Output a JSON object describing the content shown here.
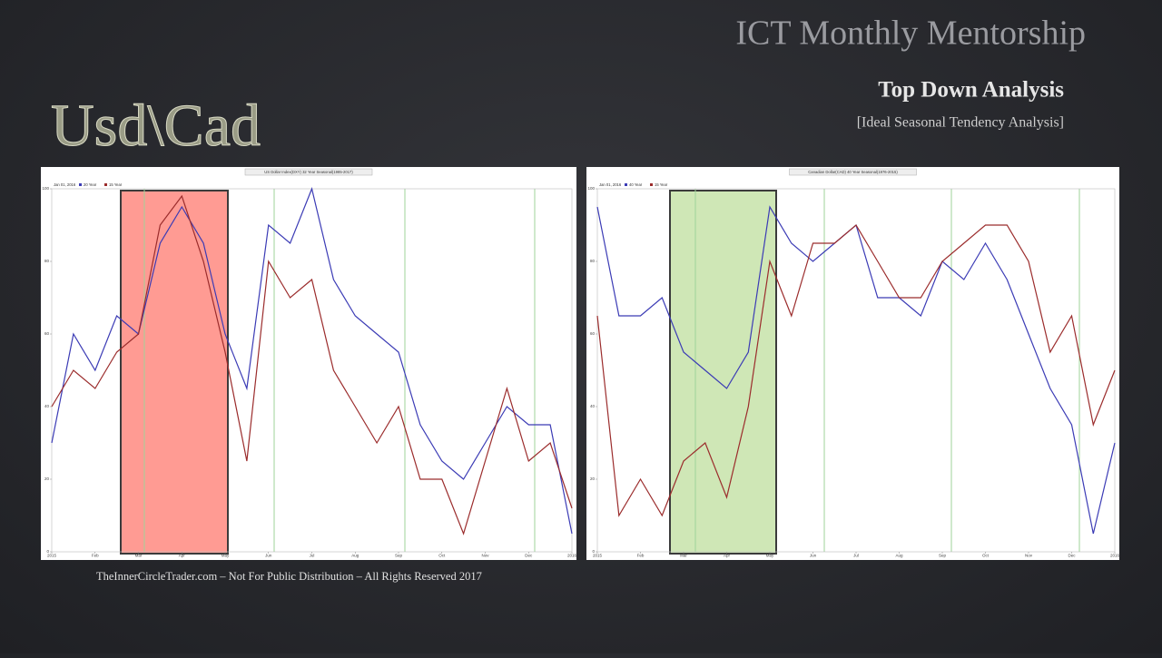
{
  "slide": {
    "title": "ICT Monthly Mentorship",
    "subtitle": "Top Down Analysis",
    "tagline": "[Ideal Seasonal Tendency Analysis]",
    "pair": "Usd\\Cad",
    "footer": "TheInnerCircleTrader.com – Not For Public Distribution – All Rights Reserved 2017"
  },
  "chart_data": [
    {
      "type": "line",
      "title": "US Dollar Index(DXY) 32 Year Seasonal(1985-2017)",
      "date": "Jan 01, 2016",
      "x": [
        0,
        0.5,
        1,
        1.5,
        2,
        2.5,
        3,
        3.5,
        4,
        4.5,
        5,
        5.5,
        6,
        6.5,
        7,
        7.5,
        8,
        8.5,
        9,
        9.5,
        10,
        10.5,
        11,
        11.5,
        12
      ],
      "xlim": [
        0,
        12
      ],
      "xticks": [
        {
          "value": 0,
          "label": "2015"
        },
        {
          "value": 1,
          "label": "Feb"
        },
        {
          "value": 2,
          "label": "Mar"
        },
        {
          "value": 3,
          "label": "Apr"
        },
        {
          "value": 4,
          "label": "May"
        },
        {
          "value": 5,
          "label": "Jun"
        },
        {
          "value": 6,
          "label": "Jul"
        },
        {
          "value": 7,
          "label": "Aug"
        },
        {
          "value": 8,
          "label": "Sep"
        },
        {
          "value": 9,
          "label": "Oct"
        },
        {
          "value": 10,
          "label": "Nov"
        },
        {
          "value": 11,
          "label": "Dec"
        },
        {
          "value": 12,
          "label": "2016"
        }
      ],
      "ylim": [
        0,
        100
      ],
      "yticks": [
        0,
        20,
        40,
        60,
        80,
        100
      ],
      "series": [
        {
          "name": "20 Year",
          "color": "#3b3bb5",
          "values": [
            30,
            60,
            50,
            65,
            60,
            85,
            95,
            85,
            60,
            45,
            90,
            85,
            100,
            75,
            65,
            60,
            55,
            35,
            25,
            20,
            30,
            40,
            35,
            35,
            5
          ]
        },
        {
          "name": "15 Year",
          "color": "#9b2c2c",
          "values": [
            40,
            50,
            45,
            55,
            60,
            90,
            98,
            80,
            55,
            25,
            80,
            70,
            75,
            50,
            40,
            30,
            40,
            20,
            20,
            5,
            25,
            45,
            25,
            30,
            12
          ]
        }
      ]
    },
    {
      "type": "line",
      "title": "Canadian Dollar(CAD) 40 Year Seasonal(1976-2015)",
      "date": "Jan 01, 2016",
      "x": [
        0,
        0.5,
        1,
        1.5,
        2,
        2.5,
        3,
        3.5,
        4,
        4.5,
        5,
        5.5,
        6,
        6.5,
        7,
        7.5,
        8,
        8.5,
        9,
        9.5,
        10,
        10.5,
        11,
        11.5,
        12
      ],
      "xlim": [
        0,
        12
      ],
      "xticks": [
        {
          "value": 0,
          "label": "2015"
        },
        {
          "value": 1,
          "label": "Feb"
        },
        {
          "value": 2,
          "label": "Mar"
        },
        {
          "value": 3,
          "label": "Apr"
        },
        {
          "value": 4,
          "label": "May"
        },
        {
          "value": 5,
          "label": "Jun"
        },
        {
          "value": 6,
          "label": "Jul"
        },
        {
          "value": 7,
          "label": "Aug"
        },
        {
          "value": 8,
          "label": "Sep"
        },
        {
          "value": 9,
          "label": "Oct"
        },
        {
          "value": 10,
          "label": "Nov"
        },
        {
          "value": 11,
          "label": "Dec"
        },
        {
          "value": 12,
          "label": "2016"
        }
      ],
      "ylim": [
        0,
        100
      ],
      "yticks": [
        0,
        20,
        40,
        60,
        80,
        100
      ],
      "series": [
        {
          "name": "40 Year",
          "color": "#3b3bb5",
          "values": [
            95,
            65,
            65,
            70,
            55,
            50,
            45,
            55,
            95,
            85,
            80,
            85,
            90,
            70,
            70,
            65,
            80,
            75,
            85,
            75,
            60,
            45,
            35,
            5,
            30
          ]
        },
        {
          "name": "15 Year",
          "color": "#9b2c2c",
          "values": [
            65,
            10,
            20,
            10,
            25,
            30,
            15,
            40,
            80,
            65,
            85,
            85,
            90,
            80,
            70,
            70,
            80,
            85,
            90,
            90,
            80,
            55,
            65,
            35,
            50
          ]
        }
      ]
    }
  ]
}
